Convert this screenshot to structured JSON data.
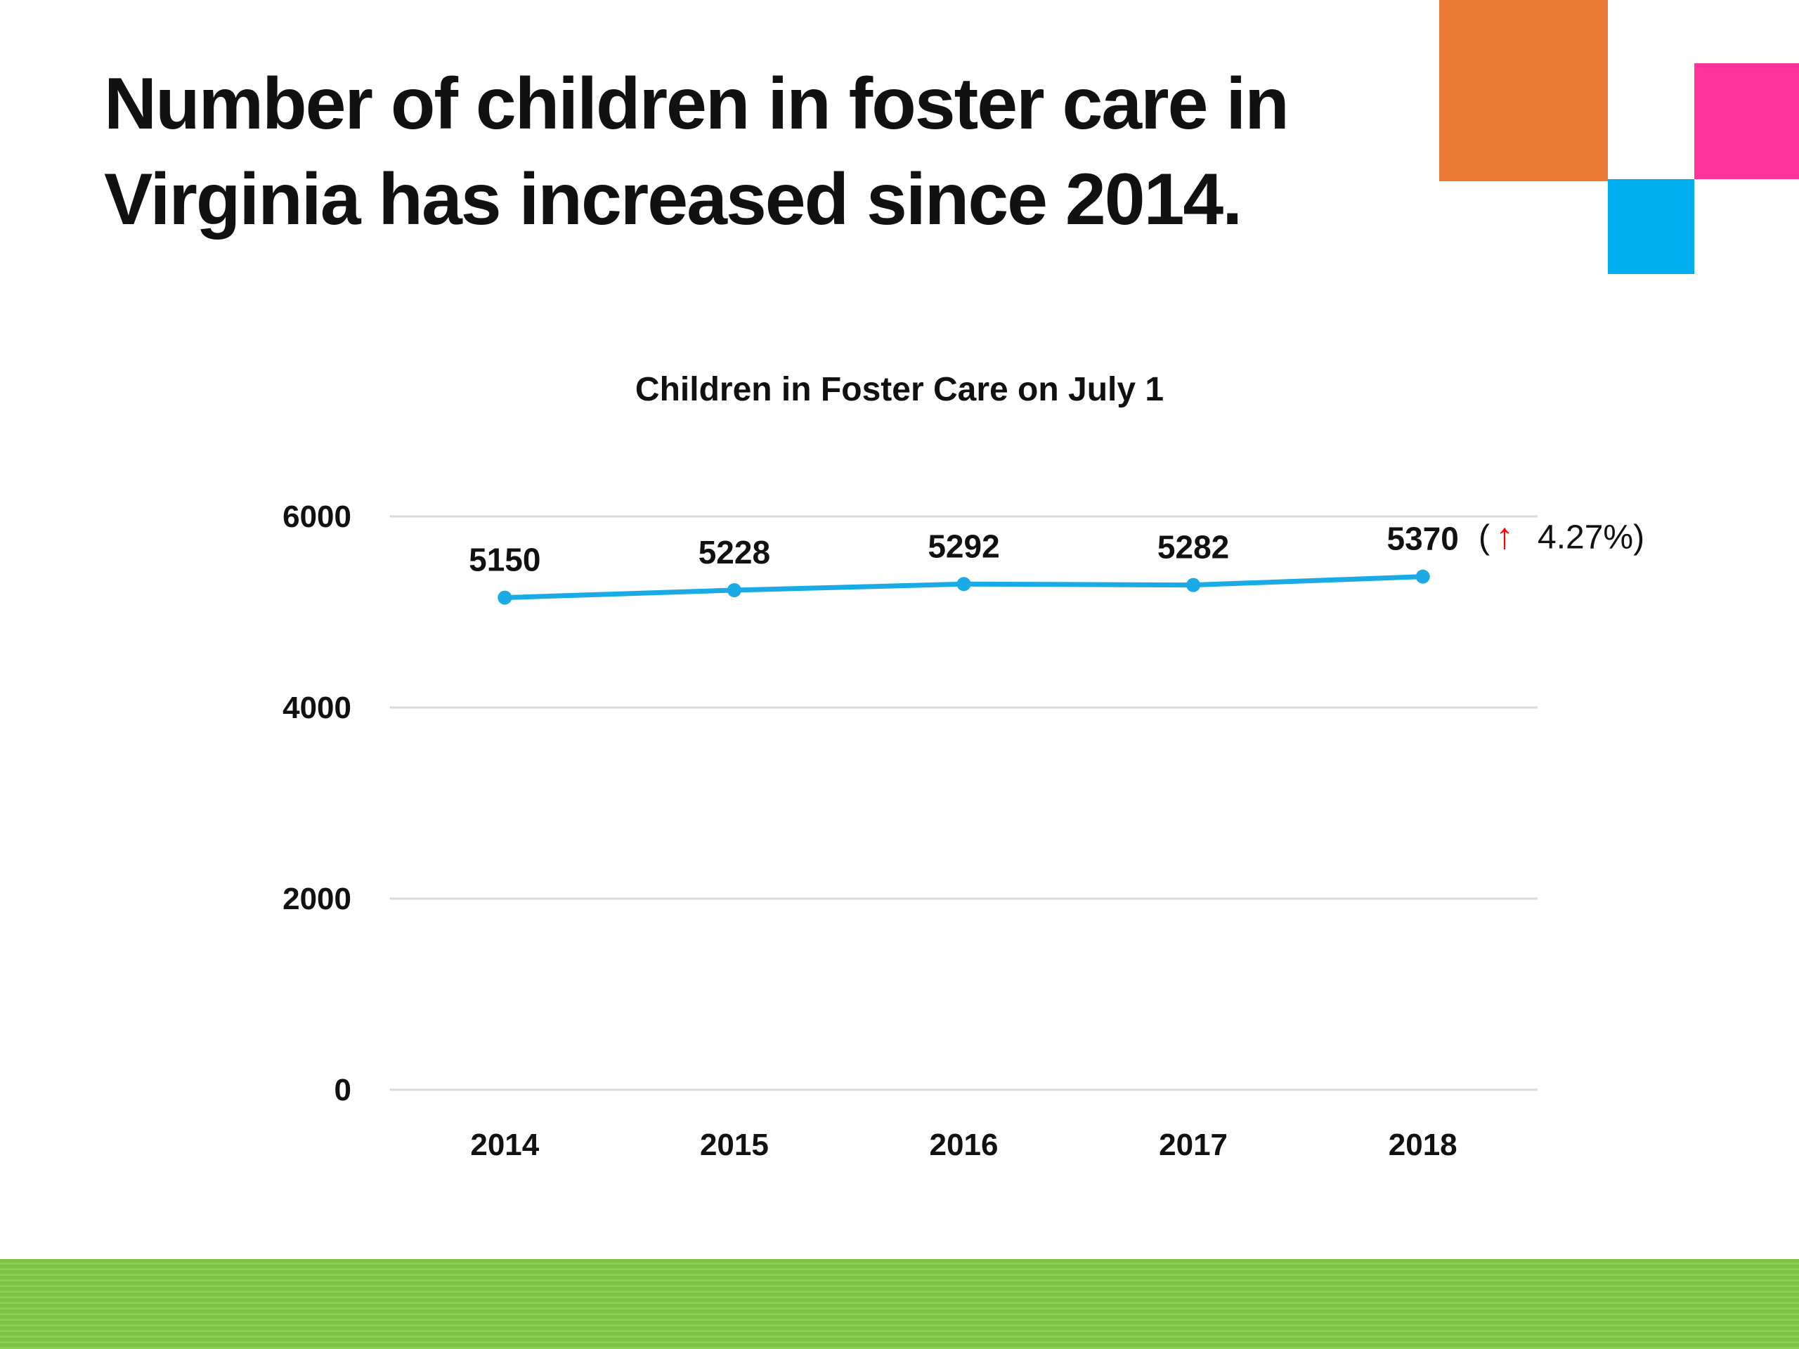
{
  "slide": {
    "headline_line1": "Number of children in foster care in",
    "headline_line2": "Virginia has increased since 2014."
  },
  "colors": {
    "line": "#1aabe6",
    "orange": "#ea7b32",
    "pink": "#ff3399",
    "blue": "#00adef",
    "green": "#7dc242",
    "gridline": "#d9d9d9",
    "arrow": "#ff0000"
  },
  "chart_data": {
    "type": "line",
    "title": "Children in Foster Care on July 1",
    "xlabel": "",
    "ylabel": "",
    "categories": [
      "2014",
      "2015",
      "2016",
      "2017",
      "2018"
    ],
    "series": [
      {
        "values": [
          5150,
          5228,
          5292,
          5282,
          5370
        ]
      }
    ],
    "data_labels": [
      "5150",
      "5228",
      "5292",
      "5282",
      "5370"
    ],
    "ylim": [
      0,
      6000
    ],
    "yticks": [
      "0",
      "2000",
      "4000",
      "6000"
    ],
    "grid": true,
    "legend": "none",
    "annotation": {
      "open": "(",
      "arrow": "↑",
      "text": "4.27%)"
    }
  }
}
